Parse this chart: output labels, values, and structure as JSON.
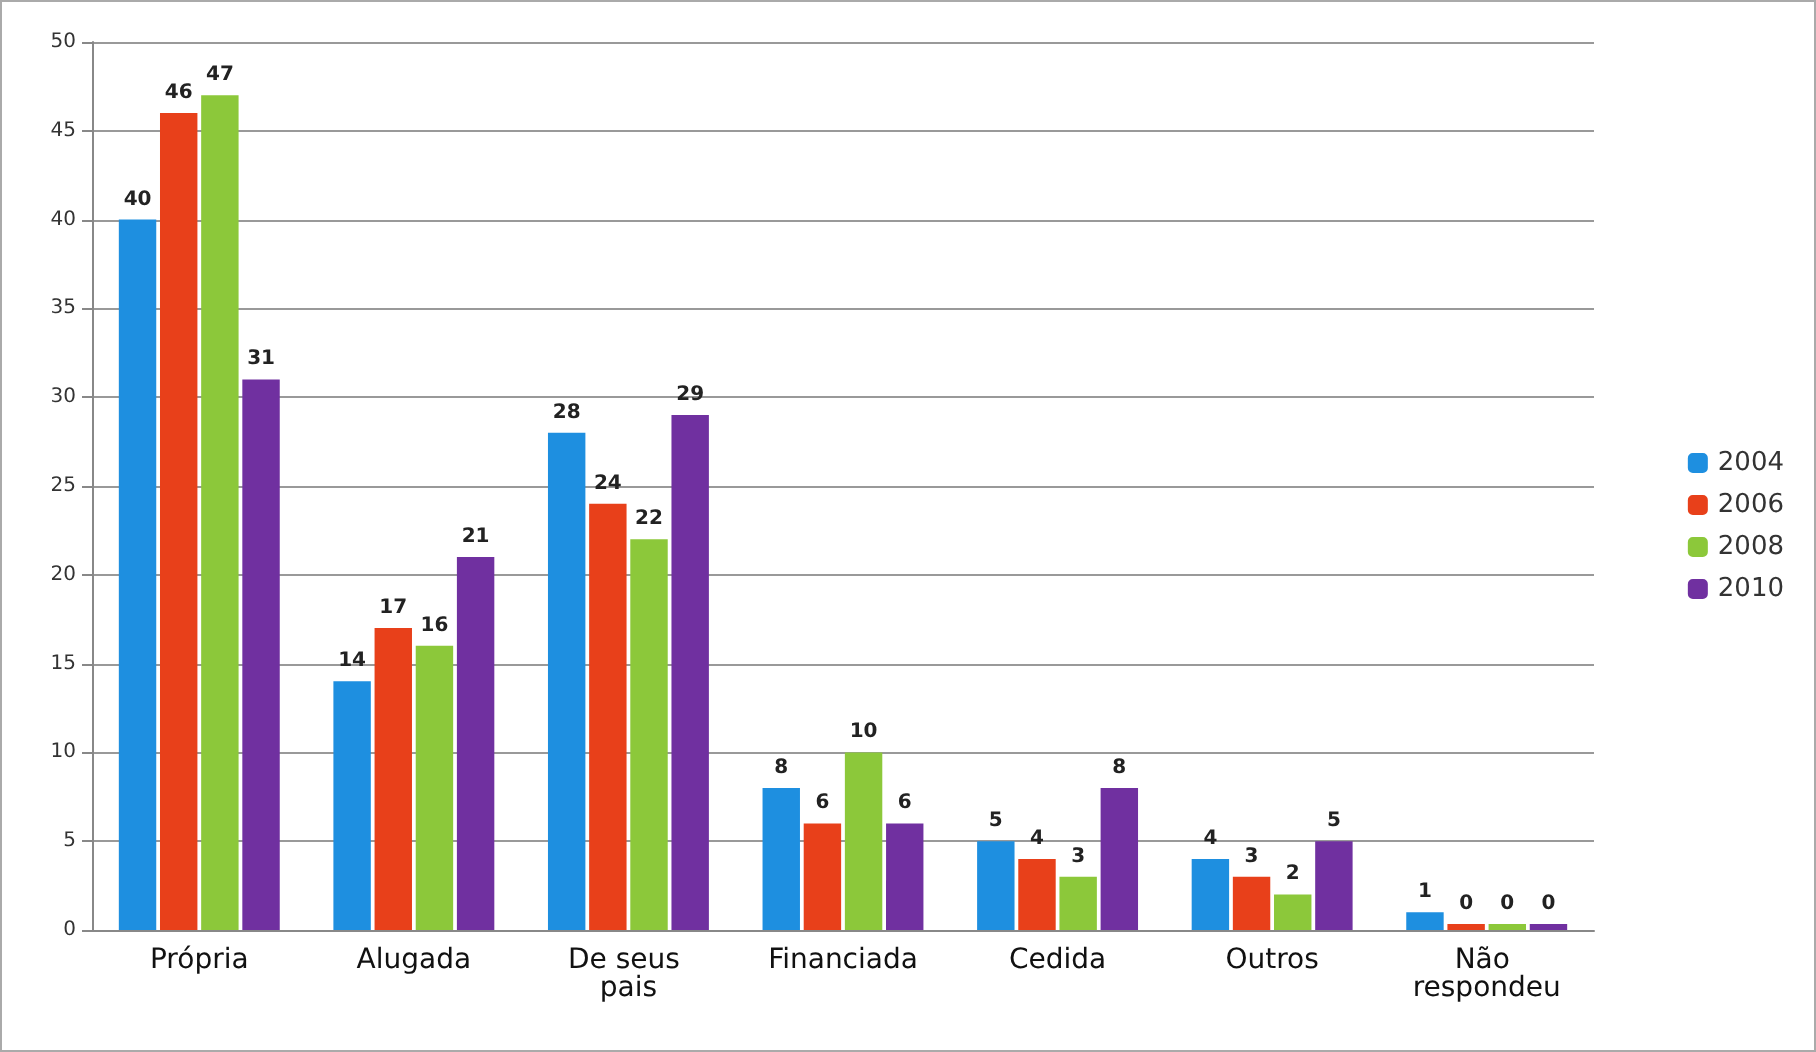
{
  "chart_data": {
    "type": "bar",
    "categories": [
      "Própria",
      "Alugada",
      "De seus pais",
      "Financiada",
      "Cedida",
      "Outros",
      "Não respondeu"
    ],
    "series": [
      {
        "name": "2004",
        "color": "#1e8fe0",
        "values": [
          40,
          14,
          28,
          8,
          5,
          4,
          1
        ]
      },
      {
        "name": "2006",
        "color": "#e8401a",
        "values": [
          46,
          17,
          24,
          6,
          4,
          3,
          0
        ]
      },
      {
        "name": "2008",
        "color": "#8cc83a",
        "values": [
          47,
          16,
          22,
          10,
          3,
          2,
          0
        ]
      },
      {
        "name": "2010",
        "color": "#7030a0",
        "values": [
          31,
          21,
          29,
          6,
          8,
          5,
          0
        ]
      }
    ],
    "ylim": [
      0,
      50
    ],
    "yticks": [
      0,
      5,
      10,
      15,
      20,
      25,
      30,
      35,
      40,
      45,
      50
    ],
    "grid": "y",
    "legend": "right",
    "data_labels": true
  }
}
